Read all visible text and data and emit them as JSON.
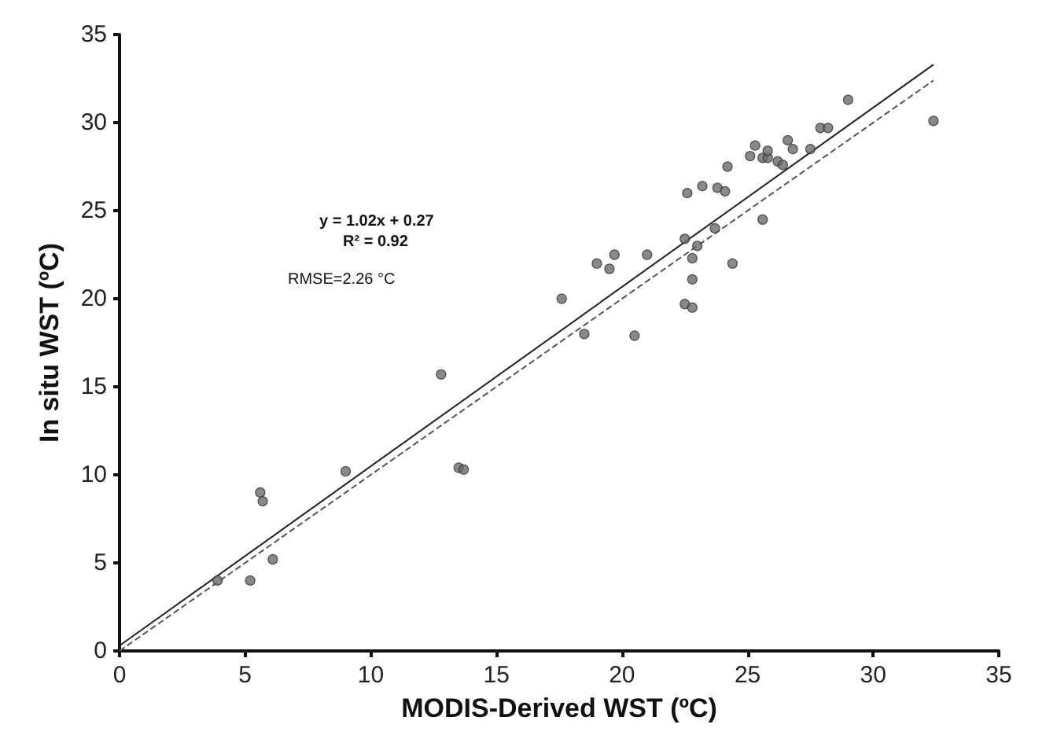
{
  "chart_data": {
    "type": "scatter",
    "xlabel": "MODIS-Derived WST (ºC)",
    "ylabel": "In situ WST (ºC)",
    "xlim": [
      0,
      35
    ],
    "ylim": [
      0,
      35
    ],
    "xticks": [
      0,
      5,
      10,
      15,
      20,
      25,
      30,
      35
    ],
    "yticks": [
      0,
      5,
      10,
      15,
      20,
      25,
      30,
      35
    ],
    "grid": false,
    "marker": "circle",
    "annotations": [
      "y = 1.02x + 0.27",
      "R² = 0.92",
      "RMSE=2.26 °C"
    ],
    "series": [
      {
        "color": "#6b6b6b",
        "x": [
          3.9,
          5.2,
          5.6,
          5.7,
          6.1,
          9.0,
          12.8,
          13.5,
          13.7,
          17.6,
          18.5,
          19.0,
          19.5,
          19.7,
          20.5,
          21.0,
          22.5,
          22.5,
          22.6,
          22.8,
          22.8,
          22.8,
          23.0,
          23.2,
          23.7,
          23.8,
          24.1,
          24.2,
          24.4,
          25.1,
          25.3,
          25.6,
          25.6,
          25.8,
          25.8,
          26.2,
          26.4,
          26.6,
          26.8,
          27.5,
          27.9,
          28.2,
          29.0,
          32.4
        ],
        "values": [
          4.0,
          4.0,
          9.0,
          8.5,
          5.2,
          10.2,
          15.7,
          10.4,
          10.3,
          20.0,
          18.0,
          22.0,
          21.7,
          22.5,
          17.9,
          22.5,
          19.7,
          23.4,
          26.0,
          22.3,
          21.1,
          19.5,
          23.0,
          26.4,
          24.0,
          26.3,
          26.1,
          27.5,
          22.0,
          28.1,
          28.7,
          24.5,
          28.0,
          28.0,
          28.4,
          27.8,
          27.6,
          29.0,
          28.5,
          28.5,
          29.7,
          29.7,
          31.3,
          30.1
        ]
      },
      {
        "type": "line",
        "color": "#222222",
        "line_style": "solid",
        "marker": "none",
        "x": [
          0,
          32.4
        ],
        "values": [
          0.3,
          33.3
        ]
      },
      {
        "type": "line",
        "color": "#555555",
        "line_style": "dashed",
        "marker": "none",
        "x": [
          0,
          32.4
        ],
        "values": [
          0,
          32.4
        ]
      }
    ]
  }
}
